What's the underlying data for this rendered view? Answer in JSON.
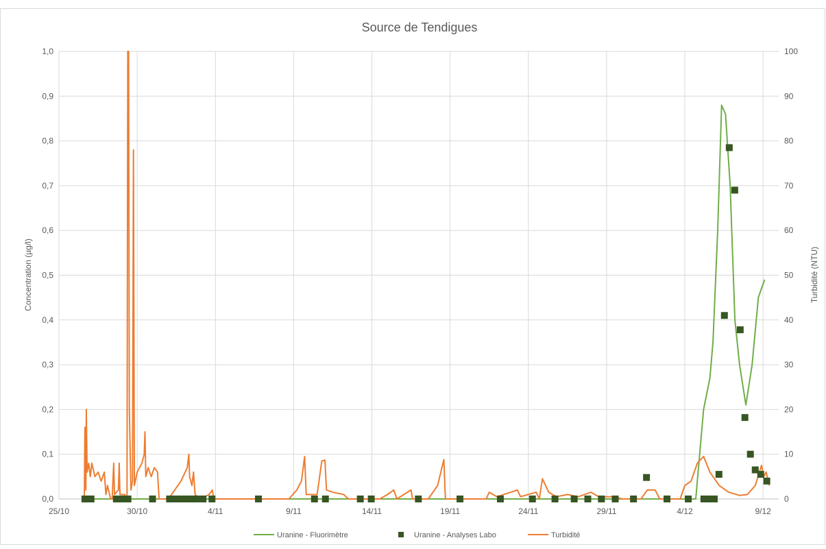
{
  "chart_data": {
    "type": "combo",
    "title": "Source de Tendigues",
    "y_label": "Concentration (µg/l)",
    "y2_label": "Turbidité (NTU)",
    "grid": true,
    "legend": "bottom",
    "xlim": [
      0,
      46
    ],
    "xticks": [
      {
        "value": 0,
        "label": "25/10"
      },
      {
        "value": 5,
        "label": "30/10"
      },
      {
        "value": 10,
        "label": "4/11"
      },
      {
        "value": 15,
        "label": "9/11"
      },
      {
        "value": 20,
        "label": "14/11"
      },
      {
        "value": 25,
        "label": "19/11"
      },
      {
        "value": 30,
        "label": "24/11"
      },
      {
        "value": 35,
        "label": "29/11"
      },
      {
        "value": 40,
        "label": "4/12"
      },
      {
        "value": 45,
        "label": "9/12"
      }
    ],
    "ylim": [
      0,
      1
    ],
    "yticks": [
      {
        "value": 0,
        "label": "0,0"
      },
      {
        "value": 0.1,
        "label": "0,1"
      },
      {
        "value": 0.2,
        "label": "0,2"
      },
      {
        "value": 0.3,
        "label": "0,3"
      },
      {
        "value": 0.4,
        "label": "0,4"
      },
      {
        "value": 0.5,
        "label": "0,5"
      },
      {
        "value": 0.6,
        "label": "0,6"
      },
      {
        "value": 0.7,
        "label": "0,7"
      },
      {
        "value": 0.8,
        "label": "0,8"
      },
      {
        "value": 0.9,
        "label": "0,9"
      },
      {
        "value": 1,
        "label": "1,0"
      }
    ],
    "y2lim": [
      0,
      100
    ],
    "y2ticks": [
      0,
      10,
      20,
      30,
      40,
      50,
      60,
      70,
      80,
      90,
      100
    ],
    "series": [
      {
        "name": "Uranine - Fluorimètre",
        "type": "line",
        "color": "#70ad47",
        "x": [
          1.6,
          40.7,
          41.2,
          41.6,
          41.8,
          42.1,
          42.35,
          42.6,
          42.9,
          43.2,
          43.5,
          43.9,
          44.3,
          44.7,
          45.1
        ],
        "values": [
          0,
          0,
          0.2,
          0.27,
          0.35,
          0.6,
          0.88,
          0.86,
          0.7,
          0.4,
          0.3,
          0.21,
          0.3,
          0.45,
          0.49
        ]
      },
      {
        "name": "Uranine - Analyses Labo",
        "type": "scatter",
        "color": "#375623",
        "x": [
          1.66,
          1.88,
          2.05,
          3.67,
          4.02,
          4.24,
          4.41,
          5.98,
          7.07,
          7.38,
          7.69,
          8.03,
          8.38,
          8.78,
          9.21,
          9.78,
          12.75,
          16.33,
          17.03,
          19.26,
          19.96,
          22.97,
          25.63,
          28.21,
          30.26,
          31.7,
          32.93,
          33.8,
          34.67,
          35.55,
          36.72,
          37.55,
          38.86,
          40.22,
          41.22,
          41.53,
          41.88,
          42.18,
          42.53,
          42.84,
          43.19,
          43.54,
          43.84,
          44.19,
          44.5,
          44.85,
          45.24
        ],
        "values": [
          0,
          0,
          0,
          0,
          0,
          0,
          0,
          0,
          0,
          0,
          0,
          0,
          0,
          0,
          0,
          0,
          0,
          0,
          0,
          0,
          0,
          0,
          0,
          0,
          0,
          0,
          0,
          0,
          0,
          0,
          0,
          0.048,
          0,
          0,
          0,
          0,
          0,
          0.055,
          0.41,
          0.785,
          0.69,
          0.378,
          0.182,
          0.1,
          0.065,
          0.055,
          0.04
        ]
      },
      {
        "name": "Turbidité",
        "type": "line",
        "color": "#ed7d31",
        "axis": "y2",
        "x": [
          1.62,
          1.66,
          1.72,
          1.75,
          1.8,
          1.9,
          2.0,
          2.1,
          2.3,
          2.5,
          2.7,
          2.9,
          3.0,
          3.1,
          3.3,
          3.4,
          3.5,
          3.55,
          3.8,
          3.85,
          3.9,
          4.2,
          4.35,
          4.4,
          4.45,
          4.5,
          4.6,
          4.7,
          4.76,
          4.82,
          5.0,
          5.3,
          5.45,
          5.5,
          5.55,
          5.7,
          5.9,
          6.1,
          6.3,
          6.4,
          7.0,
          7.4,
          7.8,
          8.2,
          8.3,
          8.35,
          8.5,
          8.6,
          8.7,
          9.0,
          9.6,
          9.8,
          9.9,
          14.7,
          15.2,
          15.5,
          15.7,
          15.8,
          16.5,
          16.8,
          17.0,
          17.1,
          17.5,
          18.2,
          18.5,
          20.5,
          21.0,
          21.4,
          21.6,
          22.5,
          22.6,
          23.6,
          24.2,
          24.6,
          24.7,
          27.3,
          27.5,
          28.0,
          29.3,
          29.5,
          30.5,
          30.7,
          30.9,
          31.3,
          31.8,
          32.5,
          33.2,
          34.0,
          34.5,
          35.5,
          36.0,
          37.2,
          37.6,
          38.1,
          38.4,
          39.7,
          40.0,
          40.4,
          40.8,
          41.2,
          41.6,
          42.2,
          42.8,
          43.5,
          44.0,
          44.5,
          44.9,
          45.05,
          45.2,
          45.4
        ],
        "values": [
          0,
          16,
          2,
          20,
          6,
          8,
          5,
          8,
          5,
          6,
          4,
          6,
          1,
          3,
          0,
          0,
          8,
          1,
          2,
          8,
          1,
          1,
          0,
          100,
          100,
          20,
          2,
          4,
          78,
          3,
          6,
          8,
          10,
          15,
          5,
          7,
          5,
          7,
          6,
          0,
          0,
          2,
          4,
          7,
          10,
          5,
          3,
          6,
          1,
          0,
          1,
          2,
          0,
          0,
          2,
          4,
          9.5,
          1,
          1,
          8.5,
          8.7,
          2,
          1.5,
          1,
          0,
          0,
          1,
          2,
          0,
          2,
          0,
          0,
          3,
          8.8,
          0,
          0,
          1.5,
          0.5,
          2,
          0.5,
          1.5,
          0,
          4.5,
          1.5,
          0.5,
          1,
          0.5,
          1.5,
          0.5,
          0.5,
          0,
          0,
          2,
          2,
          0,
          0,
          3,
          4,
          8,
          9.5,
          6,
          3,
          1.5,
          0.8,
          1,
          3,
          7.5,
          5,
          6,
          3
        ]
      }
    ]
  }
}
